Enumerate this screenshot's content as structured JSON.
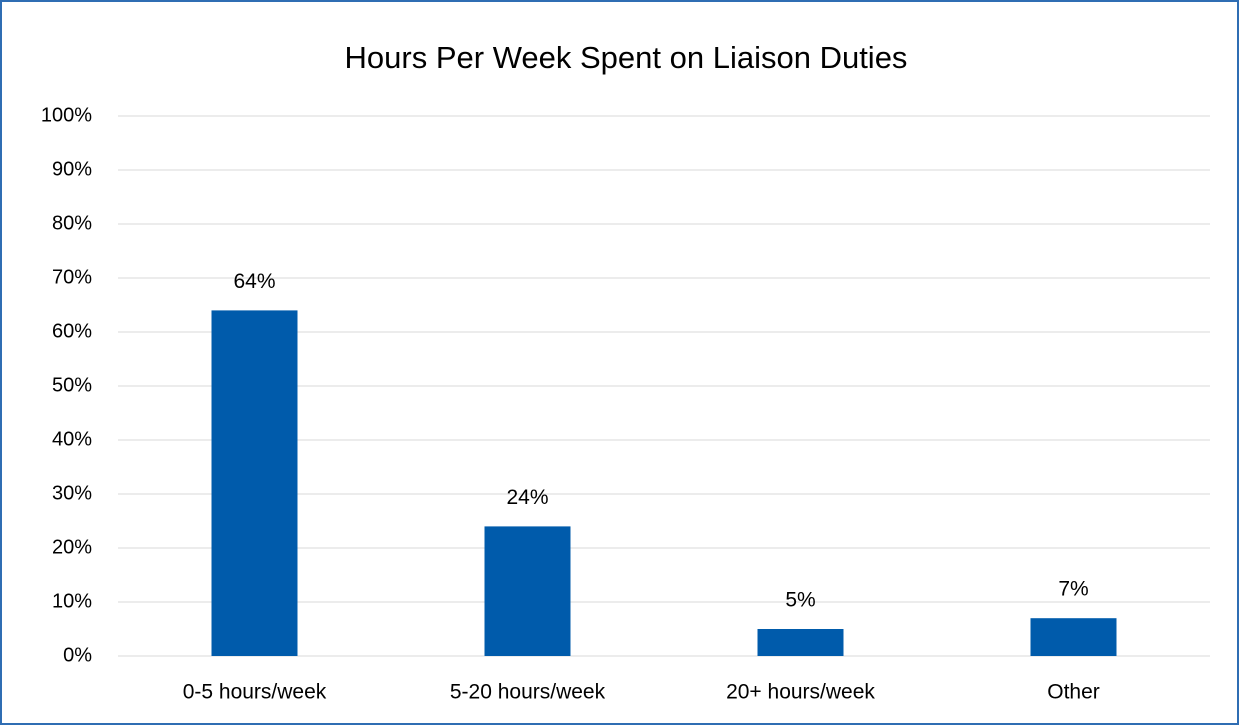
{
  "chart_data": {
    "type": "bar",
    "title": "Hours Per Week Spent on Liaison Duties",
    "categories": [
      "0-5 hours/week",
      "5-20 hours/week",
      "20+ hours/week",
      "Other"
    ],
    "values": [
      64,
      24,
      5,
      7
    ],
    "value_labels": [
      "64%",
      "24%",
      "5%",
      "7%"
    ],
    "color": "#005bab",
    "ylim": [
      0,
      100
    ],
    "yticks": [
      {
        "value": 0,
        "label": "0%"
      },
      {
        "value": 10,
        "label": "10%"
      },
      {
        "value": 20,
        "label": "20%"
      },
      {
        "value": 30,
        "label": "30%"
      },
      {
        "value": 40,
        "label": "40%"
      },
      {
        "value": 50,
        "label": "50%"
      },
      {
        "value": 60,
        "label": "60%"
      },
      {
        "value": 70,
        "label": "70%"
      },
      {
        "value": 80,
        "label": "80%"
      },
      {
        "value": 90,
        "label": "90%"
      },
      {
        "value": 100,
        "label": "100%"
      }
    ],
    "grid": true
  }
}
